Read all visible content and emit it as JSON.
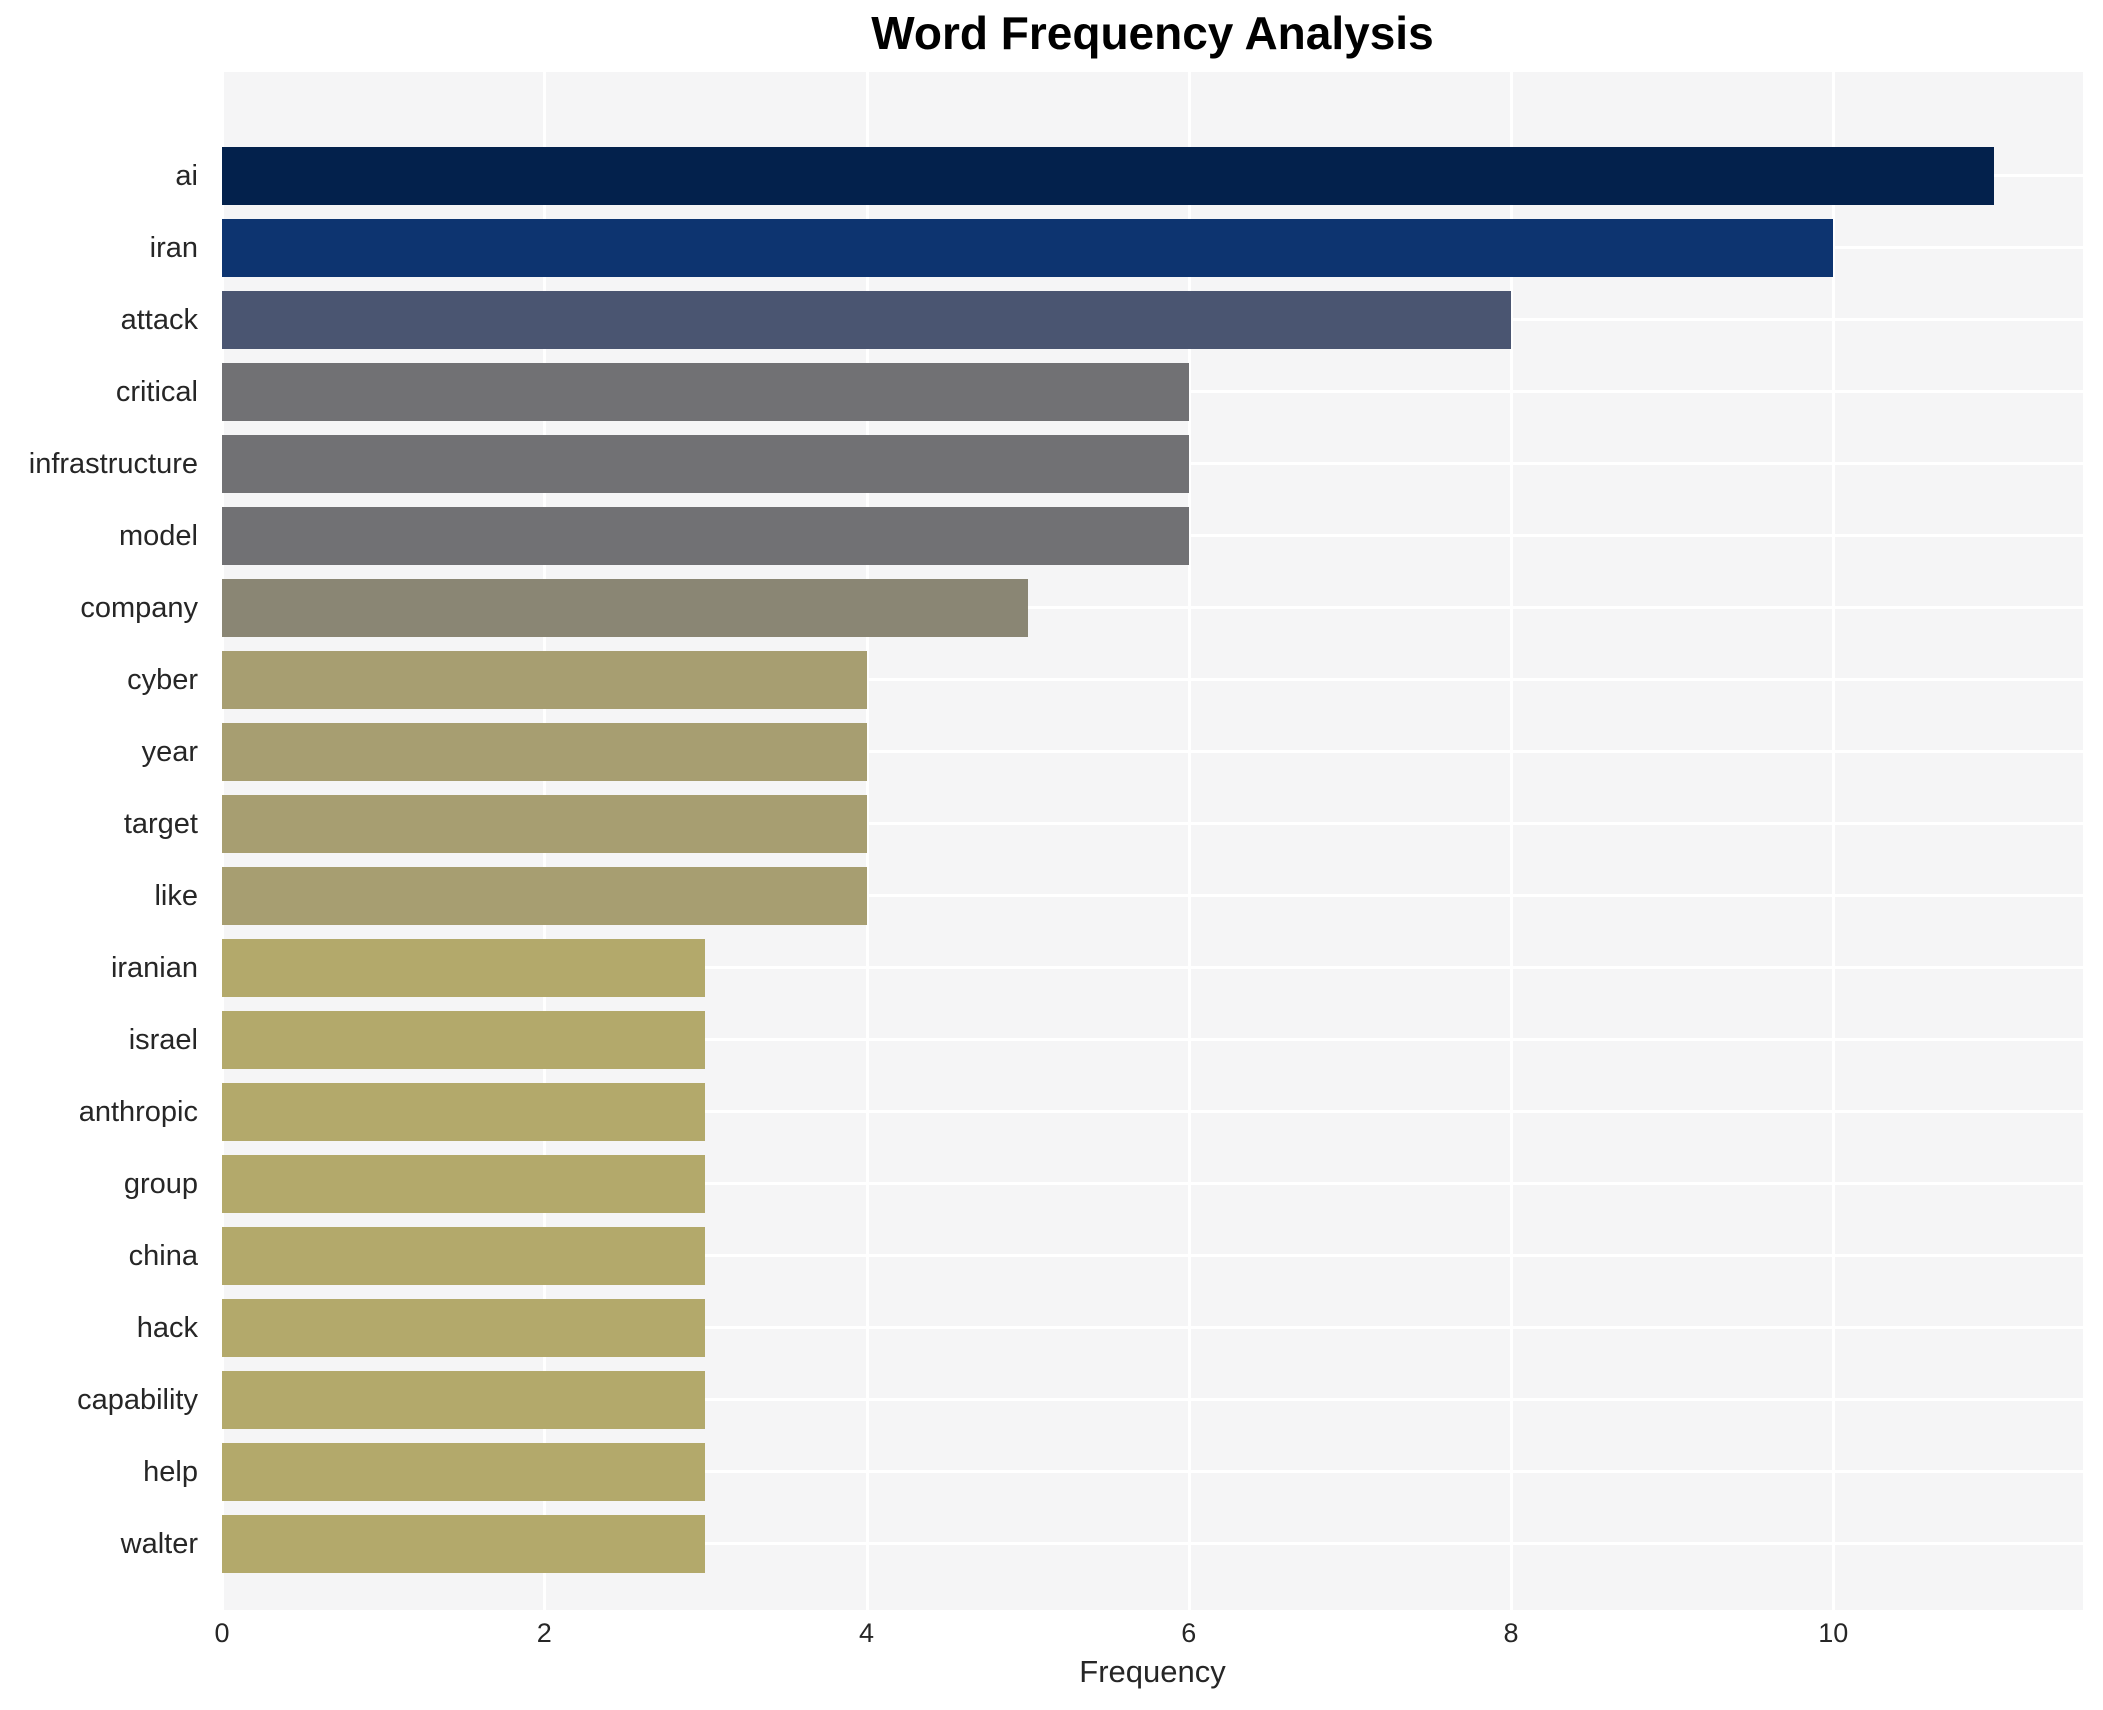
{
  "page": {
    "title": "Word Frequency Analysis",
    "xlabel": "Frequency"
  },
  "chart_data": {
    "type": "bar",
    "orientation": "horizontal",
    "title": "Word Frequency Analysis",
    "xlabel": "Frequency",
    "ylabel": "",
    "categories": [
      "ai",
      "iran",
      "attack",
      "critical",
      "infrastructure",
      "model",
      "company",
      "cyber",
      "year",
      "target",
      "like",
      "iranian",
      "israel",
      "anthropic",
      "group",
      "china",
      "hack",
      "capability",
      "help",
      "walter"
    ],
    "values": [
      11,
      10,
      8,
      6,
      6,
      6,
      5,
      4,
      4,
      4,
      4,
      3,
      3,
      3,
      3,
      3,
      3,
      3,
      3,
      3
    ],
    "bar_colors": [
      "#03214c",
      "#0d3470",
      "#4a5571",
      "#717174",
      "#717174",
      "#717174",
      "#8a8674",
      "#a79e71",
      "#a79e71",
      "#a79e71",
      "#a79e71",
      "#b3a96b",
      "#b3a96b",
      "#b3a96b",
      "#b3a96b",
      "#b3a96b",
      "#b3a96b",
      "#b3a96b",
      "#b3a96b",
      "#b3a96b"
    ],
    "x_ticks": [
      0,
      2,
      4,
      6,
      8,
      10
    ],
    "xlim": [
      0,
      11.55
    ],
    "grid": true,
    "legend": "none",
    "figure_bg": "#ffffff",
    "plot_bg": "#f5f5f6",
    "gridline_color": "#ffffff",
    "text_color": "#262626",
    "title_color": "#000000"
  }
}
